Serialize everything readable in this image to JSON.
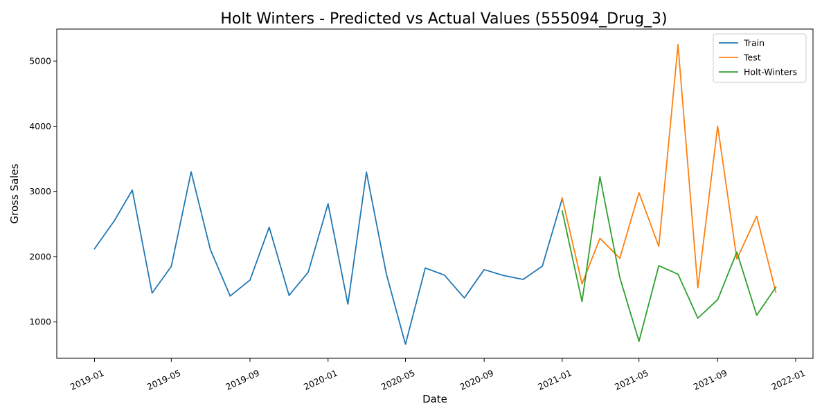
{
  "chart_data": {
    "type": "line",
    "title": "Holt Winters - Predicted vs Actual Values (555094_Drug_3)",
    "xlabel": "Date",
    "ylabel": "Gross Sales",
    "x_ticks": [
      "2019-01",
      "2019-05",
      "2019-09",
      "2020-01",
      "2020-05",
      "2020-09",
      "2021-01",
      "2021-05",
      "2021-09",
      "2022-01"
    ],
    "y_ticks": [
      1000,
      2000,
      3000,
      4000,
      5000
    ],
    "xlim": [
      "2018-11-03",
      "2022-01-28"
    ],
    "ylim": [
      440,
      5490
    ],
    "grid": false,
    "legend_position": "top-right",
    "series": [
      {
        "name": "Train",
        "color": "#1f77b4",
        "x": [
          "2019-01-01",
          "2019-02-01",
          "2019-03-01",
          "2019-04-01",
          "2019-05-01",
          "2019-06-01",
          "2019-07-01",
          "2019-08-01",
          "2019-09-01",
          "2019-10-01",
          "2019-11-01",
          "2019-12-01",
          "2020-01-01",
          "2020-02-01",
          "2020-03-01",
          "2020-04-01",
          "2020-05-01",
          "2020-06-01",
          "2020-07-01",
          "2020-08-01",
          "2020-09-01",
          "2020-10-01",
          "2020-11-01",
          "2020-12-01",
          "2021-01-01"
        ],
        "values": [
          2120,
          2550,
          3020,
          1440,
          1850,
          3300,
          2110,
          1395,
          1640,
          2450,
          1405,
          1760,
          2810,
          1270,
          3295,
          1740,
          655,
          1825,
          1715,
          1365,
          1800,
          1710,
          1650,
          1855,
          2890
        ]
      },
      {
        "name": "Test",
        "color": "#ff7f0e",
        "x": [
          "2021-01-01",
          "2021-02-01",
          "2021-03-01",
          "2021-04-01",
          "2021-05-01",
          "2021-06-01",
          "2021-07-01",
          "2021-08-01",
          "2021-09-01",
          "2021-10-01",
          "2021-11-01",
          "2021-12-01"
        ],
        "values": [
          2900,
          1580,
          2280,
          1975,
          2980,
          2155,
          5250,
          1520,
          4000,
          1960,
          2620,
          1450
        ]
      },
      {
        "name": "Holt-Winters",
        "color": "#2ca02c",
        "x": [
          "2021-01-01",
          "2021-02-01",
          "2021-03-01",
          "2021-04-01",
          "2021-05-01",
          "2021-06-01",
          "2021-07-01",
          "2021-08-01",
          "2021-09-01",
          "2021-10-01",
          "2021-11-01",
          "2021-12-01"
        ],
        "values": [
          2700,
          1310,
          3225,
          1680,
          700,
          1860,
          1730,
          1055,
          1340,
          2070,
          1100,
          1530
        ]
      }
    ]
  }
}
